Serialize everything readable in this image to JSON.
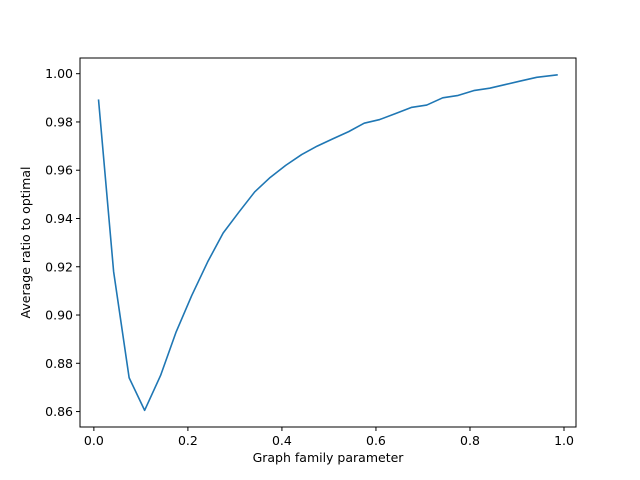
{
  "chart_data": {
    "type": "line",
    "title": "",
    "xlabel": "Graph family parameter",
    "ylabel": "Average ratio to optimal",
    "xlim": [
      -0.0295,
      1.0255
    ],
    "ylim": [
      0.8536,
      1.0065
    ],
    "grid": false,
    "x_ticks": [
      {
        "value": 0.0,
        "label": "0.0"
      },
      {
        "value": 0.2,
        "label": "0.2"
      },
      {
        "value": 0.4,
        "label": "0.4"
      },
      {
        "value": 0.6,
        "label": "0.6"
      },
      {
        "value": 0.8,
        "label": "0.8"
      },
      {
        "value": 1.0,
        "label": "1.0"
      }
    ],
    "y_ticks": [
      {
        "value": 0.86,
        "label": "0.86"
      },
      {
        "value": 0.88,
        "label": "0.88"
      },
      {
        "value": 0.9,
        "label": "0.90"
      },
      {
        "value": 0.92,
        "label": "0.92"
      },
      {
        "value": 0.94,
        "label": "0.94"
      },
      {
        "value": 0.96,
        "label": "0.96"
      },
      {
        "value": 0.98,
        "label": "0.98"
      },
      {
        "value": 1.0,
        "label": "1.00"
      }
    ],
    "series": [
      {
        "color": "#1f77b4",
        "x": [
          0.01,
          0.042,
          0.075,
          0.108,
          0.142,
          0.175,
          0.208,
          0.242,
          0.275,
          0.308,
          0.342,
          0.375,
          0.408,
          0.442,
          0.475,
          0.508,
          0.542,
          0.575,
          0.608,
          0.642,
          0.675,
          0.708,
          0.742,
          0.775,
          0.808,
          0.842,
          0.875,
          0.908,
          0.942,
          0.985
        ],
        "y": [
          0.989,
          0.918,
          0.874,
          0.8605,
          0.875,
          0.893,
          0.908,
          0.922,
          0.934,
          0.9425,
          0.951,
          0.957,
          0.962,
          0.9665,
          0.97,
          0.973,
          0.976,
          0.9795,
          0.981,
          0.9835,
          0.986,
          0.987,
          0.99,
          0.991,
          0.993,
          0.994,
          0.9955,
          0.997,
          0.9985,
          0.9995
        ]
      }
    ]
  }
}
